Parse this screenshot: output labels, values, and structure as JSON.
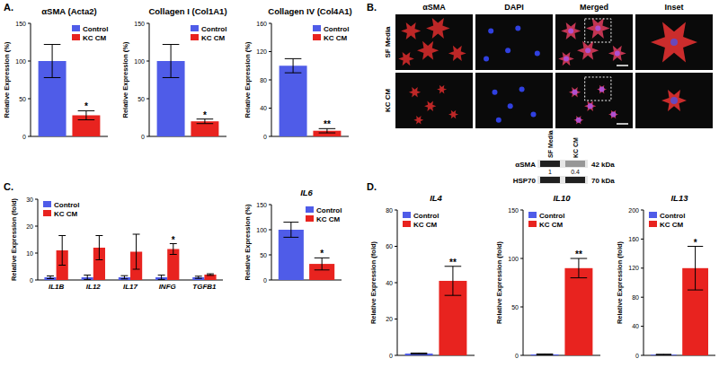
{
  "chart_data": [
    {
      "type": "bar",
      "title": "αSMA (Acta2)",
      "y_label": "Relative Expression (%)",
      "annotations": [
        "A."
      ],
      "categories": [
        null
      ],
      "series": [
        {
          "name": "Control",
          "color": "#4f5ce8",
          "values": [
            100
          ],
          "errors": [
            22
          ]
        },
        {
          "name": "KC CM",
          "color": "#e8231f",
          "values": [
            28
          ],
          "errors": [
            6
          ],
          "significance": [
            "*"
          ]
        }
      ],
      "ylim": [
        0,
        150
      ],
      "yticks": [
        0,
        50,
        100,
        150
      ],
      "legend": "upper right"
    },
    {
      "type": "bar",
      "title": "Collagen I (Col1A1)",
      "y_label": "Relative Expression (%)",
      "categories": [
        null
      ],
      "series": [
        {
          "name": "Control",
          "color": "#4f5ce8",
          "values": [
            100
          ],
          "errors": [
            22
          ]
        },
        {
          "name": "KC CM",
          "color": "#e8231f",
          "values": [
            20
          ],
          "errors": [
            3
          ],
          "significance": [
            "*"
          ]
        }
      ],
      "ylim": [
        0,
        150
      ],
      "yticks": [
        0,
        50,
        100,
        150
      ],
      "legend": "upper right"
    },
    {
      "type": "bar",
      "title": "Collagen IV (Col4A1)",
      "y_label": "Relative Expression (%)",
      "categories": [
        null
      ],
      "series": [
        {
          "name": "Control",
          "color": "#4f5ce8",
          "values": [
            100
          ],
          "errors": [
            10
          ]
        },
        {
          "name": "KC CM",
          "color": "#e8231f",
          "values": [
            8
          ],
          "errors": [
            3
          ],
          "significance": [
            "**"
          ]
        }
      ],
      "ylim": [
        0,
        160
      ],
      "yticks": [
        0,
        40,
        80,
        120,
        160
      ],
      "legend": "upper right"
    },
    {
      "type": "bar",
      "y_label": "Relative Expression (fold)",
      "annotations": [
        "C."
      ],
      "categories": [
        "IL1B",
        "IL12",
        "IL17",
        "INFG",
        "TGFB1"
      ],
      "series": [
        {
          "name": "Control",
          "color": "#4f5ce8",
          "values": [
            1,
            1,
            1,
            1,
            1
          ],
          "errors": [
            0.5,
            0.8,
            0.6,
            0.8,
            0.4
          ]
        },
        {
          "name": "KC CM",
          "color": "#e8231f",
          "values": [
            11,
            12,
            10.5,
            11.5,
            2
          ],
          "errors": [
            5.5,
            4.5,
            6.5,
            2,
            0.3
          ],
          "significance": [
            null,
            null,
            null,
            "*",
            null
          ]
        }
      ],
      "ylim": [
        0,
        30
      ],
      "yticks": [
        0,
        10,
        20,
        30
      ],
      "legend": "upper left"
    },
    {
      "type": "bar",
      "title": "IL6",
      "y_label": "Relative Expression (%)",
      "categories": [
        null
      ],
      "series": [
        {
          "name": "Control",
          "color": "#4f5ce8",
          "values": [
            100
          ],
          "errors": [
            15
          ]
        },
        {
          "name": "KC CM",
          "color": "#e8231f",
          "values": [
            32
          ],
          "errors": [
            12
          ],
          "significance": [
            "*"
          ]
        }
      ],
      "ylim": [
        0,
        150
      ],
      "yticks": [
        0,
        50,
        100,
        150
      ],
      "legend": "upper right"
    },
    {
      "type": "bar",
      "title": "IL4",
      "y_label": "Relative Expression (fold)",
      "annotations": [
        "D."
      ],
      "categories": [
        null
      ],
      "series": [
        {
          "name": "Control",
          "color": "#4f5ce8",
          "values": [
            1
          ],
          "errors": [
            0.3
          ]
        },
        {
          "name": "KC CM",
          "color": "#e8231f",
          "values": [
            41
          ],
          "errors": [
            8
          ],
          "significance": [
            "**"
          ]
        }
      ],
      "ylim": [
        0,
        80
      ],
      "yticks": [
        0,
        20,
        40,
        60,
        80
      ],
      "legend": "upper left"
    },
    {
      "type": "bar",
      "title": "IL10",
      "y_label": "Relative Expression (fold)",
      "categories": [
        null
      ],
      "series": [
        {
          "name": "Control",
          "color": "#4f5ce8",
          "values": [
            1
          ],
          "errors": [
            0.5
          ]
        },
        {
          "name": "KC CM",
          "color": "#e8231f",
          "values": [
            90
          ],
          "errors": [
            10
          ],
          "significance": [
            "**"
          ]
        }
      ],
      "ylim": [
        0,
        150
      ],
      "yticks": [
        0,
        50,
        100,
        150
      ],
      "legend": "upper left"
    },
    {
      "type": "bar",
      "title": "IL13",
      "y_label": "Relative Expression (fold)",
      "categories": [
        null
      ],
      "series": [
        {
          "name": "Control",
          "color": "#4f5ce8",
          "values": [
            1
          ],
          "errors": [
            0.5
          ]
        },
        {
          "name": "KC CM",
          "color": "#e8231f",
          "values": [
            120
          ],
          "errors": [
            30
          ],
          "significance": [
            "*"
          ]
        }
      ],
      "ylim": [
        0,
        200
      ],
      "yticks": [
        0,
        40,
        80,
        120,
        160,
        200
      ],
      "legend": "upper left"
    }
  ],
  "panel_b": {
    "label": "B.",
    "columns": [
      "αSMA",
      "DAPI",
      "Merged",
      "Inset"
    ],
    "rows": [
      "SF Media",
      "KC CM"
    ],
    "blot": {
      "lanes": [
        "SF Media",
        "KC CM"
      ],
      "bands": [
        {
          "name": "αSMA",
          "size": "42 kDa",
          "quantification": [
            1,
            0.4
          ]
        },
        {
          "name": "HSP70",
          "size": "70 kDa"
        }
      ]
    }
  }
}
